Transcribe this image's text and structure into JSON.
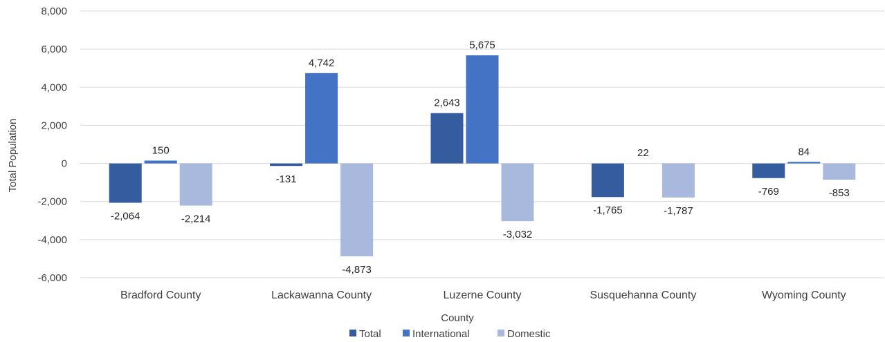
{
  "chart_data": {
    "type": "bar",
    "title": "",
    "xlabel": "County",
    "ylabel": "Total Population",
    "ylim": [
      -6000,
      8000
    ],
    "ytick_step": 2000,
    "grid": true,
    "legend_position": "bottom",
    "categories": [
      "Bradford County",
      "Lackawanna County",
      "Luzerne County",
      "Susquehanna County",
      "Wyoming County"
    ],
    "series": [
      {
        "name": "Total",
        "color": "#345c9f",
        "values": [
          -2064,
          -131,
          2643,
          -1765,
          -769
        ]
      },
      {
        "name": "International",
        "color": "#4472c4",
        "values": [
          150,
          4742,
          5675,
          null,
          84
        ]
      },
      {
        "name": "Domestic",
        "color": "#a9b9de",
        "values": [
          -2214,
          -4873,
          -3032,
          -1787,
          -853
        ]
      }
    ],
    "labels": [
      [
        "-2,064",
        "150",
        "-2,214"
      ],
      [
        "-131",
        "4,742",
        "-4,873"
      ],
      [
        "2,643",
        "5,675",
        "-3,032"
      ],
      [
        "-1,765",
        "22",
        "-1,787"
      ],
      [
        "-769",
        "84",
        "-853"
      ]
    ],
    "yticks": [
      "-6,000",
      "-4,000",
      "-2,000",
      "0",
      "2,000",
      "4,000",
      "6,000",
      "8,000"
    ]
  }
}
